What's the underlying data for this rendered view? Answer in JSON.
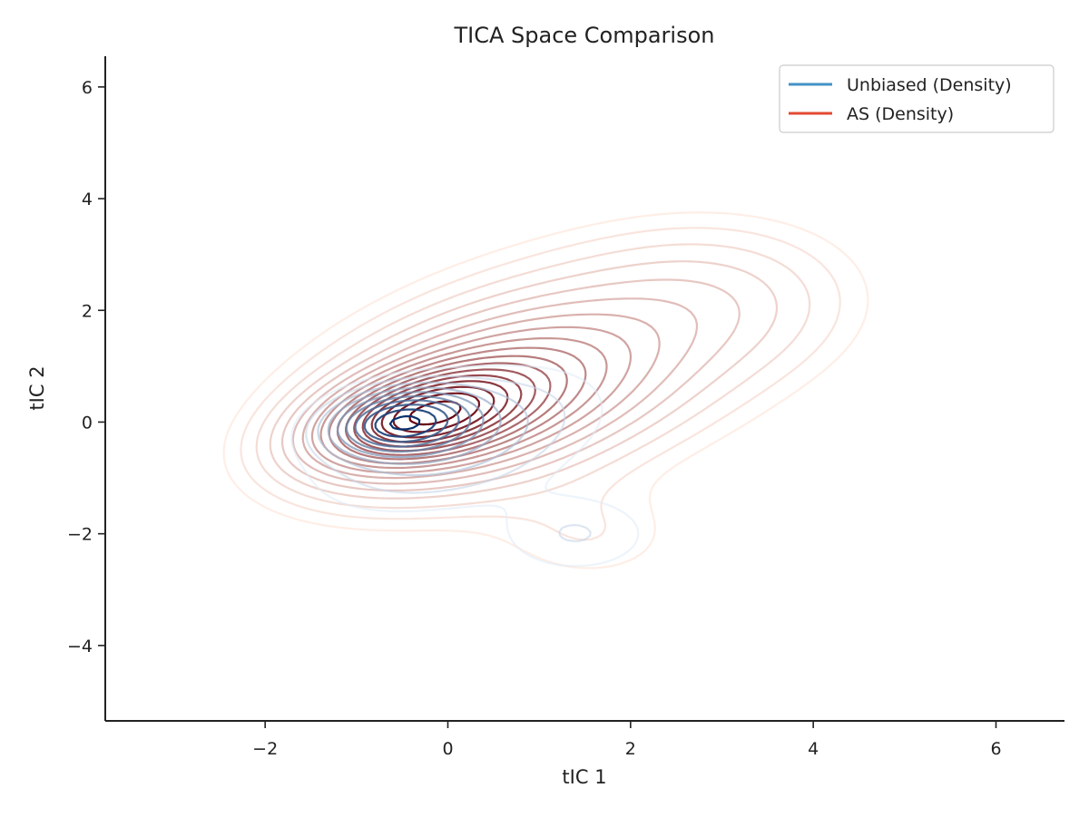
{
  "chart_data": {
    "type": "contour",
    "title": "TICA Space Comparison",
    "xlabel": "tIC 1",
    "ylabel": "tIC 2",
    "xlim": [
      -3.75,
      6.75
    ],
    "ylim": [
      -5.35,
      6.55
    ],
    "xticks": [
      -2,
      0,
      2,
      4,
      6
    ],
    "yticks": [
      -4,
      -2,
      0,
      2,
      4,
      6
    ],
    "xtick_labels": [
      "−2",
      "0",
      "2",
      "4",
      "6"
    ],
    "ytick_labels": [
      "−4",
      "−2",
      "0",
      "2",
      "4",
      "6"
    ],
    "grid": false,
    "legend_position": "top-right",
    "series": [
      {
        "name": "Unbiased (Density)",
        "legend_color": "#4292c6",
        "color_light": "#deebf7",
        "color_dark": "#08306b",
        "levels": 10,
        "components": [
          {
            "weight": 1.0,
            "mean": [
              -0.5,
              0.0
            ],
            "cov": [
              [
                0.22,
                0.03
              ],
              [
                0.03,
                0.12
              ]
            ]
          },
          {
            "weight": 0.25,
            "mean": [
              0.1,
              -0.3
            ],
            "cov": [
              [
                0.9,
                0.3
              ],
              [
                0.3,
                0.6
              ]
            ]
          },
          {
            "weight": 0.12,
            "mean": [
              1.4,
              -2.0
            ],
            "cov": [
              [
                0.35,
                0.0
              ],
              [
                0.0,
                0.25
              ]
            ]
          },
          {
            "weight": 0.06,
            "mean": [
              2.9,
              2.1
            ],
            "cov": [
              [
                0.5,
                0.05
              ],
              [
                0.05,
                0.25
              ]
            ]
          }
        ]
      },
      {
        "name": "AS (Density)",
        "legend_color": "#e34a33",
        "color_light": "#fee0d2",
        "color_dark": "#67000d",
        "levels": 18,
        "components": [
          {
            "weight": 1.0,
            "mean": [
              -0.3,
              0.1
            ],
            "cov": [
              [
                0.5,
                0.15
              ],
              [
                0.15,
                0.28
              ]
            ]
          },
          {
            "weight": 0.6,
            "mean": [
              0.4,
              0.4
            ],
            "cov": [
              [
                1.3,
                0.5
              ],
              [
                0.5,
                0.9
              ]
            ]
          },
          {
            "weight": 0.25,
            "mean": [
              1.2,
              1.0
            ],
            "cov": [
              [
                3.2,
                1.1
              ],
              [
                1.1,
                2.3
              ]
            ]
          },
          {
            "weight": 0.1,
            "mean": [
              3.0,
              2.2
            ],
            "cov": [
              [
                0.9,
                0.0
              ],
              [
                0.0,
                0.7
              ]
            ]
          },
          {
            "weight": 0.08,
            "mean": [
              1.6,
              -2.1
            ],
            "cov": [
              [
                0.6,
                0.0
              ],
              [
                0.0,
                0.45
              ]
            ]
          }
        ]
      }
    ]
  }
}
